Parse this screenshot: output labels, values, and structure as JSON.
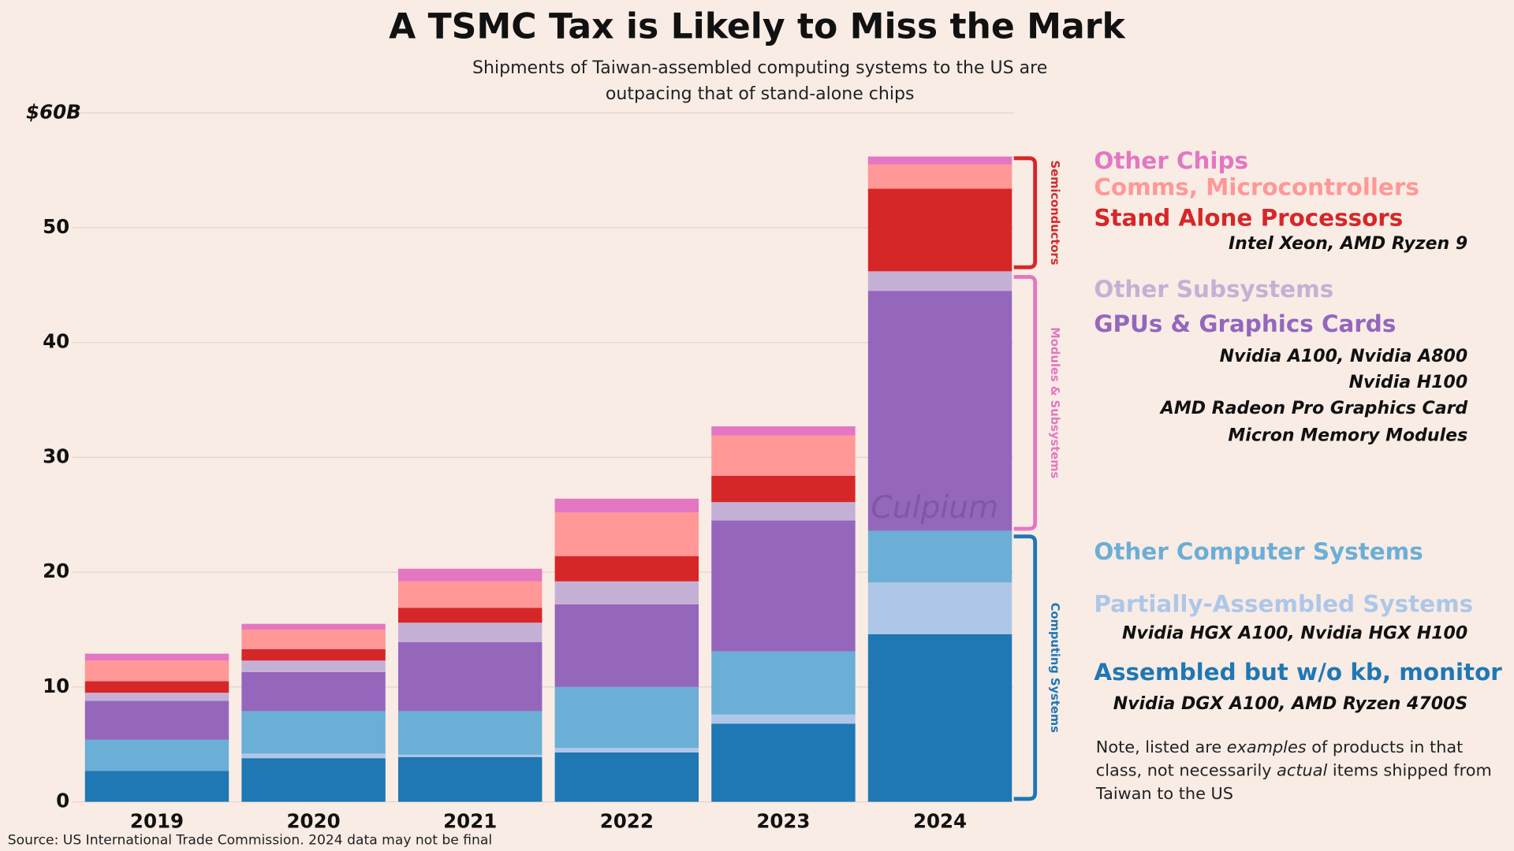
{
  "chart_data": {
    "type": "stacked_bar",
    "title": "A TSMC Tax is Likely to Miss the Mark",
    "subtitle": [
      "Shipments of Taiwan-assembled computing systems to the US  are",
      "outpacing that of stand-alone chips"
    ],
    "categories": [
      "2019",
      "2020",
      "2021",
      "2022",
      "2023",
      "2024"
    ],
    "ylim": [
      0,
      60
    ],
    "yticks": [
      0,
      10,
      20,
      30,
      40,
      50,
      {
        "value": 60,
        "label": "$60B"
      }
    ],
    "grid": true,
    "series": [
      {
        "name": "Assembled but w/o kb, monitor",
        "color": "#1f77b4",
        "values": [
          2.7,
          3.8,
          3.9,
          4.3,
          6.8,
          14.6
        ],
        "examples": [
          "Nvidia DGX A100, AMD Ryzen 4700S"
        ]
      },
      {
        "name": "Partially-Assembled Systems",
        "color": "#aec7e8",
        "values": [
          0,
          0.4,
          0.2,
          0.4,
          0.8,
          4.5
        ],
        "examples": [
          "Nvidia HGX A100, Nvidia HGX H100"
        ]
      },
      {
        "name": "Other Computer Systems",
        "color": "#6baed6",
        "values": [
          2.7,
          3.7,
          3.8,
          5.3,
          5.5,
          4.5
        ]
      },
      {
        "name": "GPUs & Graphics Cards",
        "color": "#9467bd",
        "values": [
          3.4,
          3.4,
          6.0,
          7.2,
          11.4,
          20.9
        ],
        "examples": [
          "Nvidia A100, Nvidia A800 ",
          "Nvidia H100",
          "AMD Radeon Pro Graphics Card",
          "Micron Memory Modules"
        ]
      },
      {
        "name": "Other Subsystems",
        "color": "#c5b0d5",
        "values": [
          0.7,
          1.0,
          1.7,
          2.0,
          1.6,
          1.7
        ]
      },
      {
        "name": "Stand Alone Processors",
        "color": "#d62728",
        "values": [
          1.0,
          1.0,
          1.3,
          2.2,
          2.3,
          7.2
        ],
        "examples": [
          "Intel Xeon, AMD Ryzen 9"
        ]
      },
      {
        "name": "Comms, Microcontrollers",
        "color": "#ff9896",
        "values": [
          1.8,
          1.7,
          2.3,
          3.8,
          3.5,
          2.1
        ]
      },
      {
        "name": "Other Chips",
        "color": "#e377c2",
        "values": [
          0.6,
          0.5,
          1.1,
          1.2,
          0.8,
          0.7
        ]
      }
    ],
    "groups": [
      {
        "label": "Computing Systems",
        "color": "#1f77b4"
      },
      {
        "label": "Modules & Subsystems",
        "color": "#e377c2"
      },
      {
        "label": "Semiconductors",
        "color": "#d62728"
      }
    ],
    "watermark": "Culpium",
    "note": [
      "Note, listed are ",
      "examples",
      " of products in that class, not necessarily ",
      "actual",
      " items shipped from Taiwan to the US"
    ],
    "source": "Source: US International Trade Commission.  2024 data may not be final"
  }
}
